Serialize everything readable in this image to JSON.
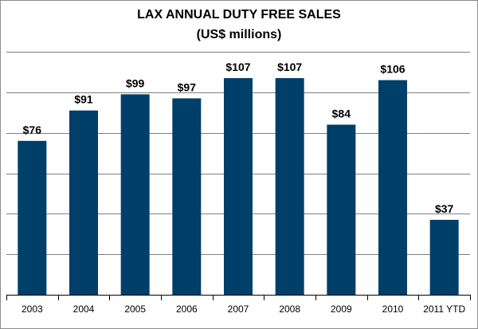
{
  "chart_data": {
    "type": "bar",
    "title": "LAX ANNUAL DUTY FREE SALES",
    "subtitle": "(US$ millions)",
    "categories": [
      "2003",
      "2004",
      "2005",
      "2006",
      "2007",
      "2008",
      "2009",
      "2010",
      "2011 YTD"
    ],
    "values": [
      76,
      91,
      99,
      97,
      107,
      107,
      84,
      106,
      37
    ],
    "data_labels": [
      "$76",
      "$91",
      "$99",
      "$97",
      "$107",
      "$107",
      "$84",
      "$106",
      "$37"
    ],
    "xlabel": "",
    "ylabel": "",
    "ylim": [
      0,
      120
    ],
    "y_ticks_shown": false,
    "grid": true,
    "legend": "none",
    "bar_color": "#003f6a",
    "grid_color": "#7f7f7f"
  }
}
